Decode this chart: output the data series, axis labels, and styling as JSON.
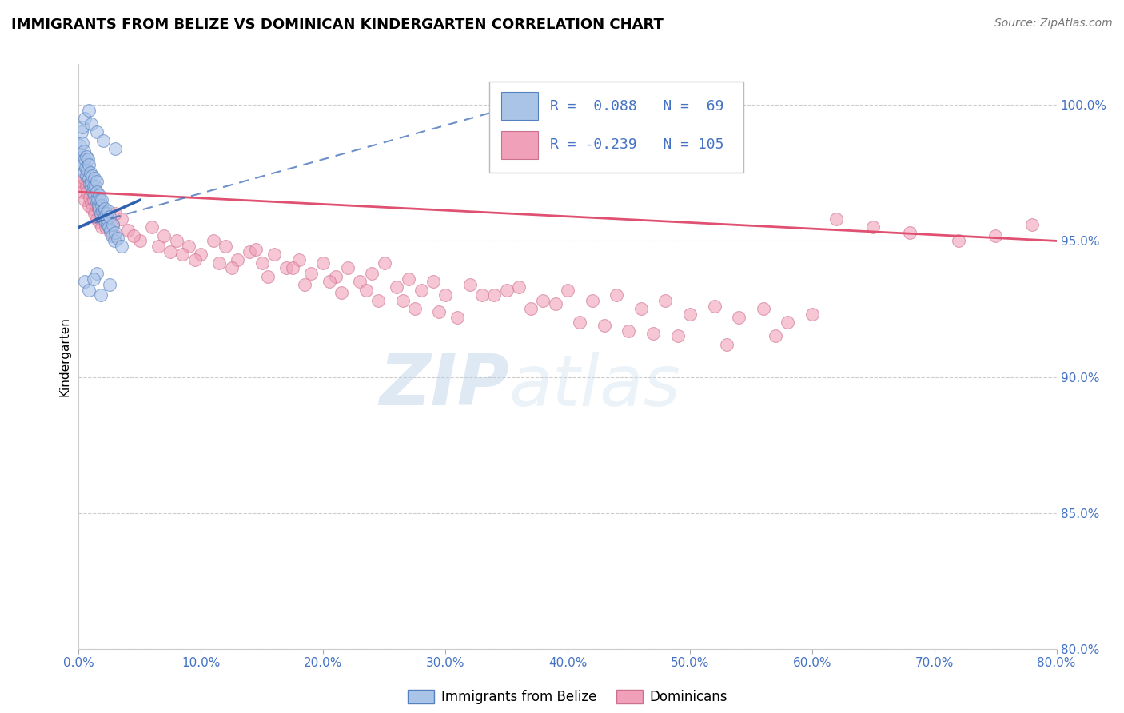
{
  "title": "IMMIGRANTS FROM BELIZE VS DOMINICAN KINDERGARTEN CORRELATION CHART",
  "source": "Source: ZipAtlas.com",
  "ylabel": "Kindergarten",
  "watermark": "ZIPatlas",
  "legend_belize": "Immigrants from Belize",
  "legend_dominican": "Dominicans",
  "r_belize": 0.088,
  "n_belize": 69,
  "r_dominican": -0.239,
  "n_dominican": 105,
  "xlim": [
    0.0,
    80.0
  ],
  "ylim": [
    87.5,
    101.5
  ],
  "yticks": [
    80.0,
    85.0,
    90.0,
    95.0,
    100.0
  ],
  "xticks": [
    0.0,
    10.0,
    20.0,
    30.0,
    40.0,
    50.0,
    60.0,
    70.0,
    80.0
  ],
  "color_belize": "#aac4e8",
  "color_belize_line": "#3060b0",
  "color_belize_edge": "#5580c0",
  "color_dominican": "#f0a0b8",
  "color_dominican_line": "#e05070",
  "color_dominican_edge": "#cc7090",
  "color_r_text": "#4472c4",
  "color_ytick": "#4472c4",
  "color_xtick": "#4472c4",
  "belize_x": [
    0.1,
    0.15,
    0.2,
    0.25,
    0.3,
    0.35,
    0.4,
    0.45,
    0.5,
    0.55,
    0.6,
    0.65,
    0.7,
    0.75,
    0.8,
    0.85,
    0.9,
    0.95,
    1.0,
    1.05,
    1.1,
    1.15,
    1.2,
    1.25,
    1.3,
    1.35,
    1.4,
    1.45,
    1.5,
    1.55,
    1.6,
    1.65,
    1.7,
    1.75,
    1.8,
    1.85,
    1.9,
    1.95,
    2.0,
    2.05,
    2.1,
    2.15,
    2.2,
    2.25,
    2.3,
    2.35,
    2.4,
    2.45,
    2.5,
    2.6,
    2.7,
    2.8,
    2.9,
    3.0,
    3.2,
    3.5,
    0.3,
    0.5,
    0.8,
    1.0,
    1.5,
    2.0,
    3.0,
    0.5,
    1.5,
    0.8,
    1.2,
    1.8,
    2.5
  ],
  "belize_y": [
    98.5,
    98.2,
    97.9,
    99.0,
    98.6,
    97.8,
    98.3,
    97.5,
    98.0,
    97.7,
    98.1,
    97.4,
    97.6,
    98.0,
    97.3,
    97.8,
    97.1,
    97.5,
    97.0,
    97.2,
    97.4,
    96.8,
    97.0,
    97.3,
    96.7,
    97.0,
    96.5,
    97.2,
    96.8,
    96.5,
    96.3,
    96.7,
    96.2,
    96.5,
    96.0,
    96.3,
    96.5,
    96.1,
    95.8,
    96.0,
    96.2,
    95.9,
    95.7,
    96.0,
    95.6,
    95.8,
    96.1,
    95.5,
    95.9,
    95.4,
    95.2,
    95.6,
    95.0,
    95.3,
    95.1,
    94.8,
    99.2,
    99.5,
    99.8,
    99.3,
    99.0,
    98.7,
    98.4,
    93.5,
    93.8,
    93.2,
    93.6,
    93.0,
    93.4
  ],
  "dominican_x": [
    0.1,
    0.2,
    0.3,
    0.4,
    0.5,
    0.6,
    0.7,
    0.8,
    0.9,
    1.0,
    1.1,
    1.2,
    1.3,
    1.4,
    1.5,
    1.6,
    1.7,
    1.8,
    1.9,
    2.0,
    2.2,
    2.4,
    2.6,
    2.8,
    3.0,
    3.5,
    4.0,
    5.0,
    6.0,
    7.0,
    8.0,
    9.0,
    10.0,
    11.0,
    12.0,
    13.0,
    14.0,
    15.0,
    16.0,
    17.0,
    18.0,
    19.0,
    20.0,
    21.0,
    22.0,
    23.0,
    24.0,
    25.0,
    26.0,
    27.0,
    28.0,
    29.0,
    30.0,
    32.0,
    34.0,
    36.0,
    38.0,
    40.0,
    42.0,
    44.0,
    46.0,
    48.0,
    50.0,
    52.0,
    54.0,
    56.0,
    58.0,
    60.0,
    62.0,
    65.0,
    68.0,
    72.0,
    75.0,
    78.0,
    4.5,
    6.5,
    8.5,
    11.5,
    14.5,
    17.5,
    20.5,
    23.5,
    26.5,
    29.5,
    33.0,
    37.0,
    41.0,
    45.0,
    49.0,
    53.0,
    57.0,
    3.0,
    7.5,
    9.5,
    12.5,
    15.5,
    18.5,
    21.5,
    24.5,
    27.5,
    31.0,
    35.0,
    39.0,
    43.0,
    47.0
  ],
  "dominican_y": [
    97.2,
    97.0,
    96.8,
    97.3,
    96.5,
    97.0,
    96.8,
    96.3,
    96.6,
    96.4,
    96.2,
    96.5,
    96.0,
    96.3,
    95.8,
    96.2,
    95.7,
    96.0,
    95.5,
    96.1,
    95.5,
    95.8,
    95.3,
    95.6,
    95.2,
    95.8,
    95.4,
    95.0,
    95.5,
    95.2,
    95.0,
    94.8,
    94.5,
    95.0,
    94.8,
    94.3,
    94.6,
    94.2,
    94.5,
    94.0,
    94.3,
    93.8,
    94.2,
    93.7,
    94.0,
    93.5,
    93.8,
    94.2,
    93.3,
    93.6,
    93.2,
    93.5,
    93.0,
    93.4,
    93.0,
    93.3,
    92.8,
    93.2,
    92.8,
    93.0,
    92.5,
    92.8,
    92.3,
    92.6,
    92.2,
    92.5,
    92.0,
    92.3,
    95.8,
    95.5,
    95.3,
    95.0,
    95.2,
    95.6,
    95.2,
    94.8,
    94.5,
    94.2,
    94.7,
    94.0,
    93.5,
    93.2,
    92.8,
    92.4,
    93.0,
    92.5,
    92.0,
    91.7,
    91.5,
    91.2,
    91.5,
    96.0,
    94.6,
    94.3,
    94.0,
    93.7,
    93.4,
    93.1,
    92.8,
    92.5,
    92.2,
    93.2,
    92.7,
    91.9,
    91.6
  ],
  "dominican_trend_x0": 0.0,
  "dominican_trend_y0": 96.8,
  "dominican_trend_x1": 80.0,
  "dominican_trend_y1": 95.0,
  "belize_trend_x0": 0.0,
  "belize_trend_y0": 95.5,
  "belize_trend_x1": 5.0,
  "belize_trend_y1": 96.5,
  "belize_dashed_x0": 0.0,
  "belize_dashed_y0": 95.5,
  "belize_dashed_x1": 40.0,
  "belize_dashed_y1": 100.5
}
